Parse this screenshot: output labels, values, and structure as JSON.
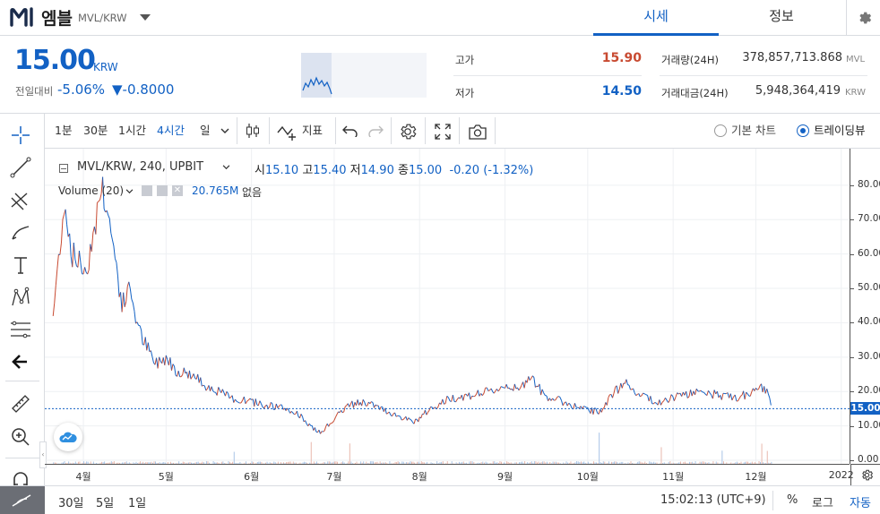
{
  "header": {
    "coin_name": "엠블",
    "pair": "MVL/KRW",
    "tabs": [
      "시세",
      "정보"
    ],
    "settings_icon": "gear-icon"
  },
  "summary": {
    "price": "15.00",
    "price_unit": "KRW",
    "change_label": "전일대비",
    "change_rate": "-5.06%",
    "change_amount": "▼-0.8000",
    "high_label": "고가",
    "high_value": "15.90",
    "low_label": "저가",
    "low_value": "14.50",
    "volume_label": "거래량(24H)",
    "volume_value": "378,857,713.868",
    "volume_unit": "MVL",
    "amount_label": "거래대금(24H)",
    "amount_value": "5,948,364,419",
    "amount_unit": "KRW"
  },
  "toolbar": {
    "intervals": [
      "1분",
      "30분",
      "1시간",
      "4시간",
      "일"
    ],
    "active_interval": "4시간",
    "indicator_label": "지표",
    "chart_modes": [
      "기본 차트",
      "트레이딩뷰"
    ],
    "selected_mode": "트레이딩뷰"
  },
  "legend": {
    "symbol": "MVL/KRW, 240, UPBIT",
    "open_label": "시",
    "open": "15.10",
    "high_label": "고",
    "high": "15.40",
    "low_label": "저",
    "low": "14.90",
    "close_label": "종",
    "close": "15.00",
    "change": "-0.20 (-1.32%)",
    "volume_label": "Volume (20)",
    "volume_value": "20.765M",
    "volume_extra": "없음"
  },
  "bottom": {
    "ranges": [
      "30일",
      "5일",
      "1일"
    ],
    "time": "15:02:13 (UTC+9)",
    "percent": "%",
    "log": "로그",
    "auto": "자동"
  },
  "colors": {
    "up": "#c84a31",
    "down": "#1261c4",
    "accent": "#1261c4"
  },
  "chart_data": {
    "type": "line",
    "yaxis_ticks": [
      "80.00",
      "70.00",
      "60.00",
      "50.00",
      "40.00",
      "30.00",
      "20.00",
      "10.00",
      "0.00"
    ],
    "ylim": [
      0,
      87
    ],
    "current_price_label": "15.00",
    "xaxis_ticks": [
      "4월",
      "5월",
      "6월",
      "7월",
      "8월",
      "9월",
      "10월",
      "11월",
      "12월",
      "2022"
    ],
    "series": [
      {
        "x": [
          "2021-03-21",
          "2021-03-25",
          "2021-03-28",
          "2021-04-02",
          "2021-04-05",
          "2021-04-08",
          "2021-04-12",
          "2021-04-15",
          "2021-04-18",
          "2021-04-21",
          "2021-04-24",
          "2021-04-27",
          "2021-05-01",
          "2021-05-05",
          "2021-05-10",
          "2021-05-15",
          "2021-05-20",
          "2021-05-25",
          "2021-06-01",
          "2021-06-07",
          "2021-06-13",
          "2021-06-19",
          "2021-06-22",
          "2021-06-26",
          "2021-07-01",
          "2021-07-06",
          "2021-07-12",
          "2021-07-18",
          "2021-07-24",
          "2021-07-30",
          "2021-08-05",
          "2021-08-12",
          "2021-08-20",
          "2021-08-27",
          "2021-09-02",
          "2021-09-06",
          "2021-09-10",
          "2021-09-15",
          "2021-09-22",
          "2021-09-29",
          "2021-10-05",
          "2021-10-11",
          "2021-10-15",
          "2021-10-20",
          "2021-10-27",
          "2021-11-03",
          "2021-11-10",
          "2021-11-17",
          "2021-11-24",
          "2021-11-30",
          "2021-12-03",
          "2021-12-06",
          "2021-12-07"
        ],
        "values": [
          42,
          75,
          60,
          55,
          68,
          80,
          62,
          45,
          50,
          38,
          33,
          28,
          30,
          26,
          25,
          22,
          20,
          18,
          17,
          16,
          15,
          13,
          10,
          8,
          12,
          16,
          17,
          15,
          13,
          11,
          15,
          18,
          19,
          20,
          22,
          20,
          25,
          19,
          17,
          15,
          14,
          20,
          23,
          19,
          17,
          19,
          20,
          19,
          18,
          20,
          21,
          19,
          15
        ]
      }
    ],
    "volume_note": "volume bars at bottom"
  }
}
